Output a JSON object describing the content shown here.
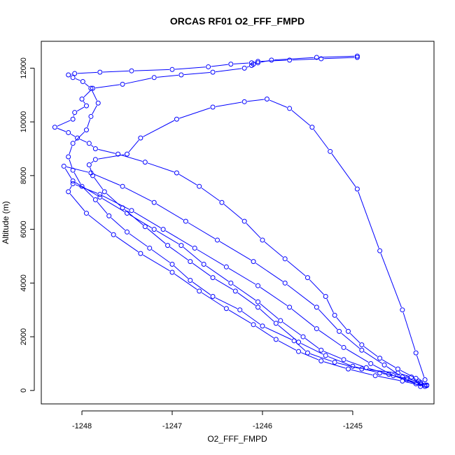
{
  "chart_data": {
    "type": "line",
    "title": "ORCAS RF01 O2_FFF_FMPD",
    "xlabel": "O2_FFF_FMPD",
    "ylabel": "Altitude (m)",
    "xlim": [
      -1248.45,
      -1244.1
    ],
    "ylim": [
      -500,
      13000
    ],
    "xticks": [
      -1248,
      -1247,
      -1246,
      -1245
    ],
    "yticks": [
      0,
      2000,
      4000,
      6000,
      8000,
      10000,
      12000
    ],
    "xtick_labels": [
      "-1248",
      "-1247",
      "-1246",
      "-1245"
    ],
    "ytick_labels": [
      "0",
      "2000",
      "4000",
      "6000",
      "8000",
      "10000",
      "12000"
    ],
    "grid": false,
    "series_color": "#0000ff",
    "marker": "open-circle",
    "series": [
      {
        "x": [
          -1244.18,
          -1244.27,
          -1244.35,
          -1244.5,
          -1244.9,
          -1245.2,
          -1245.5,
          -1245.65,
          -1246.0,
          -1246.25,
          -1246.55,
          -1246.8,
          -1247.0,
          -1247.25,
          -1247.5,
          -1247.7,
          -1247.85,
          -1248.0,
          -1248.1,
          -1248.15,
          -1248.1,
          -1247.95,
          -1247.9,
          -1247.82,
          -1247.9,
          -1247.99,
          -1248.1,
          -1248.15,
          -1248.08,
          -1247.8,
          -1247.45,
          -1247.0,
          -1246.6,
          -1246.35,
          -1246.12,
          -1246.05,
          -1245.7,
          -1245.35,
          -1244.95
        ],
        "y": [
          200,
          350,
          500,
          650,
          800,
          1050,
          1400,
          1850,
          2400,
          3000,
          3500,
          4100,
          4700,
          5300,
          5900,
          6500,
          7100,
          7600,
          8200,
          8700,
          9200,
          9700,
          10200,
          10700,
          11250,
          11500,
          11650,
          11750,
          11800,
          11850,
          11900,
          11950,
          12050,
          12150,
          12200,
          12250,
          12300,
          12350,
          12400
        ]
      },
      {
        "x": [
          -1244.95,
          -1245.4,
          -1245.9,
          -1246.05,
          -1246.1,
          -1246.12,
          -1246.2,
          -1246.55,
          -1246.9,
          -1247.2,
          -1247.55,
          -1247.88,
          -1248.0,
          -1247.95,
          -1248.08,
          -1248.1,
          -1248.3,
          -1248.15,
          -1248.05,
          -1247.92,
          -1247.85,
          -1247.6,
          -1247.3,
          -1246.95,
          -1246.7,
          -1246.45,
          -1246.2,
          -1246.0,
          -1245.75,
          -1245.5,
          -1245.3,
          -1245.2,
          -1245.05,
          -1244.9,
          -1244.7,
          -1244.5,
          -1244.3,
          -1244.25
        ],
        "y": [
          12450,
          12400,
          12300,
          12200,
          12150,
          12100,
          12000,
          11850,
          11750,
          11650,
          11400,
          11250,
          10850,
          10600,
          10350,
          10100,
          9800,
          9600,
          9400,
          9200,
          9000,
          8800,
          8500,
          8100,
          7600,
          7000,
          6300,
          5600,
          4900,
          4200,
          3500,
          2800,
          2200,
          1700,
          1200,
          800,
          450,
          250
        ]
      },
      {
        "x": [
          -1244.25,
          -1244.4,
          -1244.7,
          -1245.0,
          -1245.3,
          -1245.6,
          -1245.85,
          -1246.05,
          -1246.3,
          -1246.55,
          -1246.8,
          -1247.05,
          -1247.3,
          -1247.55,
          -1247.75,
          -1247.88,
          -1247.92,
          -1247.85,
          -1247.5,
          -1247.35,
          -1246.95,
          -1246.55,
          -1246.2,
          -1245.95,
          -1245.7,
          -1245.45,
          -1245.25,
          -1244.95,
          -1244.7,
          -1244.45,
          -1244.3,
          -1244.2
        ],
        "y": [
          300,
          450,
          650,
          900,
          1300,
          1800,
          2500,
          3100,
          3700,
          4200,
          4800,
          5400,
          6100,
          6800,
          7400,
          8000,
          8400,
          8600,
          8800,
          9400,
          10100,
          10550,
          10750,
          10850,
          10500,
          9800,
          8900,
          7500,
          5200,
          3000,
          1400,
          400
        ]
      },
      {
        "x": [
          -1244.2,
          -1244.4,
          -1244.6,
          -1244.85,
          -1245.1,
          -1245.35,
          -1245.55,
          -1245.8,
          -1246.05,
          -1246.35,
          -1246.65,
          -1246.9,
          -1247.2,
          -1247.5,
          -1247.8,
          -1248.1,
          -1248.2,
          -1247.9,
          -1247.55,
          -1247.2,
          -1246.85,
          -1246.5,
          -1246.1,
          -1245.75,
          -1245.4,
          -1245.15,
          -1244.9,
          -1244.65,
          -1244.45,
          -1244.25
        ],
        "y": [
          200,
          400,
          600,
          850,
          1150,
          1500,
          2000,
          2600,
          3300,
          4000,
          4700,
          5400,
          6000,
          6600,
          7200,
          7800,
          8350,
          8100,
          7600,
          7000,
          6300,
          5600,
          4800,
          4000,
          3100,
          2200,
          1500,
          950,
          500,
          150
        ]
      },
      {
        "x": [
          -1244.2,
          -1244.45,
          -1244.75,
          -1245.05,
          -1245.35,
          -1245.6,
          -1245.85,
          -1246.1,
          -1246.4,
          -1246.7,
          -1247.0,
          -1247.35,
          -1247.65,
          -1247.95,
          -1248.15,
          -1248.1,
          -1247.8,
          -1247.45,
          -1247.1,
          -1246.75,
          -1246.4,
          -1246.05,
          -1245.7,
          -1245.4,
          -1245.1,
          -1244.8,
          -1244.55,
          -1244.3,
          -1244.18
        ],
        "y": [
          150,
          350,
          550,
          800,
          1100,
          1450,
          1900,
          2450,
          3050,
          3700,
          4400,
          5100,
          5800,
          6600,
          7400,
          7700,
          7300,
          6700,
          6000,
          5300,
          4600,
          3900,
          3100,
          2300,
          1600,
          1000,
          550,
          250,
          180
        ]
      }
    ]
  }
}
